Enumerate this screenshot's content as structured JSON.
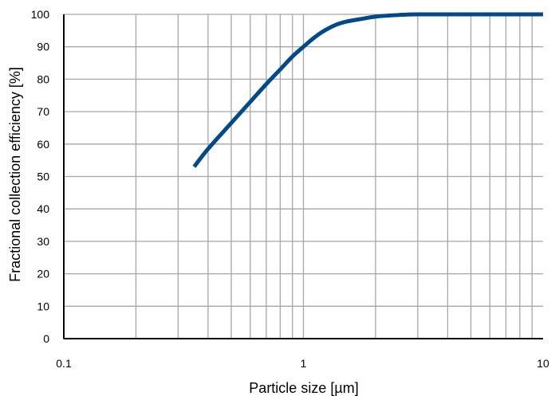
{
  "chart_data": {
    "type": "line",
    "xlabel": "Particle size [µm]",
    "ylabel": "Fractional collection efficiency [%]",
    "x_scale": "log",
    "xlim": [
      0.1,
      10
    ],
    "ylim": [
      0,
      100
    ],
    "x_ticks": [
      {
        "value": 0.1,
        "label": "0.1"
      },
      {
        "value": 1,
        "label": "1"
      },
      {
        "value": 10,
        "label": "10"
      }
    ],
    "y_ticks": [
      {
        "value": 0,
        "label": "0"
      },
      {
        "value": 10,
        "label": "10"
      },
      {
        "value": 20,
        "label": "20"
      },
      {
        "value": 30,
        "label": "30"
      },
      {
        "value": 40,
        "label": "40"
      },
      {
        "value": 50,
        "label": "50"
      },
      {
        "value": 60,
        "label": "60"
      },
      {
        "value": 70,
        "label": "70"
      },
      {
        "value": 80,
        "label": "80"
      },
      {
        "value": 90,
        "label": "90"
      },
      {
        "value": 100,
        "label": "100"
      }
    ],
    "grid": true,
    "series": [
      {
        "color": "#004a8c",
        "points": [
          {
            "x": 0.35,
            "y": 53
          },
          {
            "x": 0.4,
            "y": 58.5
          },
          {
            "x": 0.5,
            "y": 66.5
          },
          {
            "x": 0.6,
            "y": 73
          },
          {
            "x": 0.7,
            "y": 78.5
          },
          {
            "x": 0.8,
            "y": 83
          },
          {
            "x": 0.9,
            "y": 87
          },
          {
            "x": 1.0,
            "y": 90
          },
          {
            "x": 1.1,
            "y": 92.6
          },
          {
            "x": 1.2,
            "y": 94.6
          },
          {
            "x": 1.35,
            "y": 96.6
          },
          {
            "x": 1.5,
            "y": 97.7
          },
          {
            "x": 1.75,
            "y": 98.6
          },
          {
            "x": 2.0,
            "y": 99.3
          },
          {
            "x": 2.5,
            "y": 99.8
          },
          {
            "x": 3.0,
            "y": 100
          },
          {
            "x": 5.0,
            "y": 100
          },
          {
            "x": 10.0,
            "y": 100
          }
        ]
      }
    ]
  }
}
